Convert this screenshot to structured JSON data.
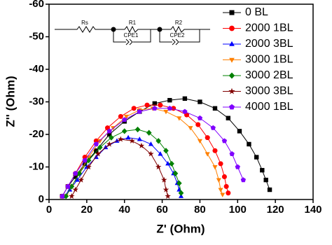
{
  "chart_data": {
    "type": "line",
    "x_label": "Z' (Ohm)",
    "y_label": "Z'' (Ohm)",
    "xlim": [
      0,
      140
    ],
    "xticks": [
      0,
      20,
      40,
      60,
      80,
      100,
      120,
      140
    ],
    "ylim": [
      0,
      -60
    ],
    "yticks": [
      0,
      -10,
      -20,
      -30,
      -40,
      -50,
      -60
    ],
    "legend": "upper right",
    "inset": {
      "labels": [
        "Rs",
        "R1",
        "CPE1",
        "R2",
        "CPE2"
      ]
    },
    "series": [
      {
        "name": "0 BL",
        "color": "#000000",
        "marker": "square",
        "x": [
          7,
          10,
          14,
          19,
          25,
          32,
          40,
          48,
          56,
          64,
          72,
          80,
          88,
          95,
          101,
          106,
          110,
          113,
          115,
          117
        ],
        "values": [
          -1,
          -4,
          -7,
          -11,
          -15,
          -20,
          -24,
          -27,
          -29.5,
          -30.5,
          -31,
          -30,
          -28,
          -25,
          -21,
          -17,
          -13,
          -9,
          -6,
          -3
        ]
      },
      {
        "name": "2000 1BL",
        "color": "#ff0000",
        "marker": "circle",
        "x": [
          7,
          10,
          14,
          19,
          25,
          31,
          38,
          45,
          52,
          59,
          66,
          73,
          79,
          84,
          88,
          91,
          93,
          94,
          95
        ],
        "values": [
          -1,
          -4,
          -8,
          -13,
          -18,
          -22,
          -25.5,
          -28,
          -29,
          -29,
          -28,
          -26,
          -23,
          -19,
          -15,
          -11,
          -7,
          -4,
          -2
        ]
      },
      {
        "name": "2000 3BL",
        "color": "#0000ff",
        "marker": "triangle-up",
        "x": [
          8,
          11,
          15,
          20,
          25,
          30,
          36,
          42,
          48,
          54,
          59,
          63,
          66,
          68,
          69,
          70
        ],
        "values": [
          -1,
          -3,
          -6,
          -10,
          -13,
          -16,
          -18,
          -19,
          -18.5,
          -17,
          -14,
          -11,
          -8,
          -5,
          -3,
          -1
        ]
      },
      {
        "name": "3000 1BL",
        "color": "#ff8000",
        "marker": "triangle-down",
        "x": [
          9,
          12,
          16,
          21,
          27,
          34,
          41,
          48,
          55,
          62,
          69,
          75,
          80,
          84,
          88,
          90,
          91,
          92
        ],
        "values": [
          -1,
          -4,
          -8,
          -13,
          -18,
          -22,
          -25.5,
          -27.5,
          -28,
          -27,
          -25,
          -22,
          -18,
          -14,
          -10,
          -6,
          -3,
          -1.5
        ]
      },
      {
        "name": "3000 2BL",
        "color": "#008000",
        "marker": "diamond",
        "x": [
          9,
          12,
          16,
          21,
          27,
          33,
          40,
          47,
          53,
          58,
          62,
          65,
          67,
          69,
          70
        ],
        "values": [
          -1,
          -4,
          -8,
          -12,
          -16,
          -19,
          -21,
          -21.5,
          -20.5,
          -18,
          -15,
          -11,
          -8,
          -5,
          -2
        ]
      },
      {
        "name": "3000 3BL",
        "color": "#800000",
        "marker": "star",
        "x": [
          12,
          14,
          17,
          21,
          26,
          32,
          38,
          44,
          49,
          54,
          58,
          61,
          62,
          63
        ],
        "values": [
          -1,
          -3,
          -6,
          -10,
          -14,
          -17,
          -18.5,
          -18,
          -16.5,
          -14,
          -10,
          -6,
          -3,
          -1
        ]
      },
      {
        "name": "4000 1BL",
        "color": "#8000ff",
        "marker": "pentagon",
        "x": [
          7,
          10,
          14,
          19,
          25,
          32,
          40,
          48,
          56,
          64,
          72,
          80,
          87,
          93,
          97,
          100,
          103
        ],
        "values": [
          -1,
          -4,
          -8,
          -12,
          -17,
          -21,
          -24.5,
          -27,
          -28,
          -28,
          -27,
          -25,
          -22,
          -18,
          -14,
          -10,
          -6
        ]
      }
    ]
  }
}
